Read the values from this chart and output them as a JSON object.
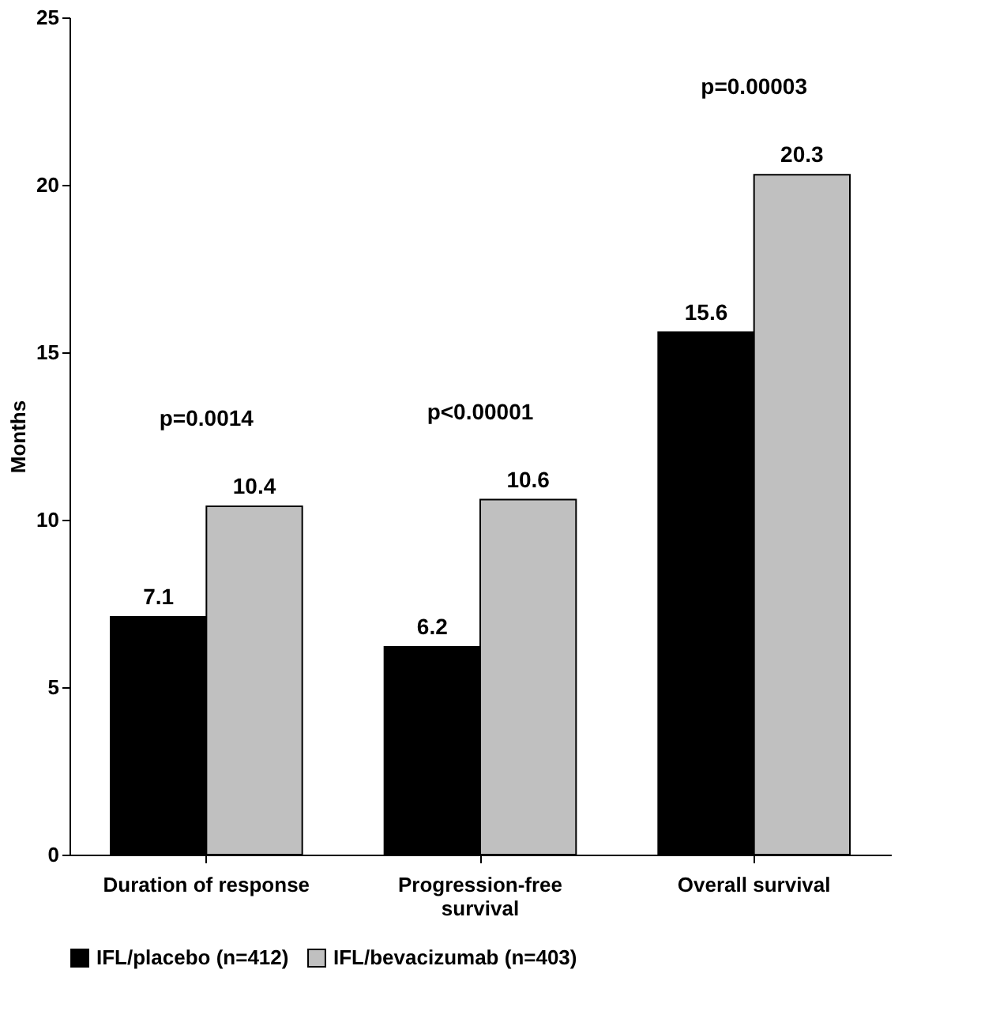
{
  "chart_data": {
    "type": "bar",
    "ylabel": "Months",
    "categories": [
      "Duration of response",
      "Progression-free survival",
      "Overall survival"
    ],
    "series": [
      {
        "name": "IFL/placebo (n=412)",
        "color": "#000000",
        "values": [
          7.1,
          6.2,
          15.6
        ]
      },
      {
        "name": "IFL/bevacizumab (n=403)",
        "color": "#c0c0c0",
        "values": [
          10.4,
          10.6,
          20.3
        ]
      }
    ],
    "ylim": [
      0,
      25
    ],
    "yticks": [
      0,
      5,
      10,
      15,
      20,
      25
    ],
    "grid": false,
    "legend": "bottom",
    "data_labels": true,
    "annotations": [
      "p=0.0014",
      "p<0.00001",
      "p=0.00003"
    ]
  }
}
